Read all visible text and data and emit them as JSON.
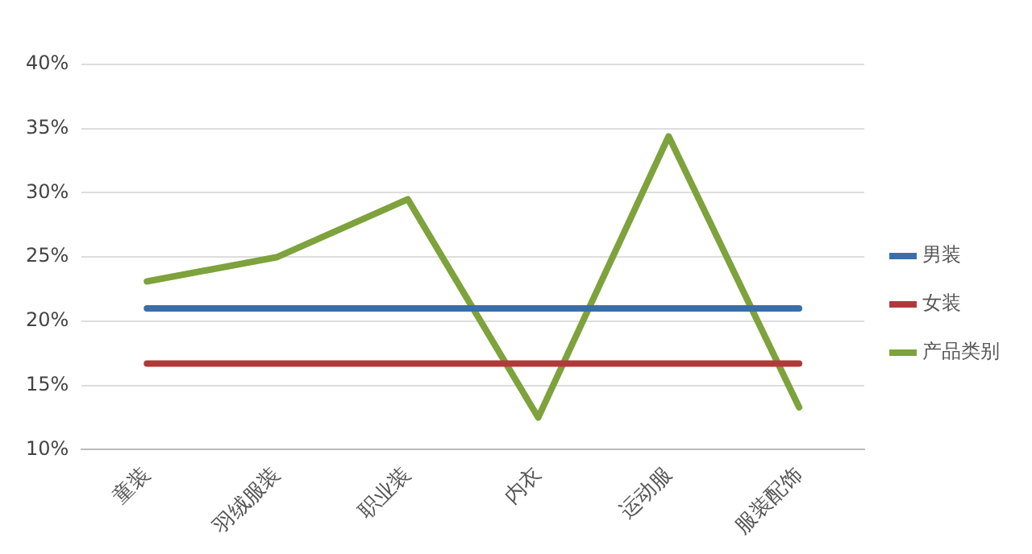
{
  "chart_data": {
    "type": "line",
    "categories": [
      "童装",
      "羽绒服装",
      "职业装",
      "内衣",
      "运动服",
      "服装配饰"
    ],
    "series": [
      {
        "name": "男装",
        "color": "#3a6ea8",
        "values": [
          21,
          21,
          21,
          21,
          21,
          21
        ]
      },
      {
        "name": "女装",
        "color": "#b03a3a",
        "values": [
          16.7,
          16.7,
          16.7,
          16.7,
          16.7,
          16.7
        ]
      },
      {
        "name": "产品类别",
        "color": "#7ea23c",
        "values": [
          23.1,
          25,
          29.5,
          12.5,
          34.4,
          13.3
        ]
      }
    ],
    "ylim": [
      10,
      40
    ],
    "yticks": [
      {
        "value": 10,
        "label": "10%"
      },
      {
        "value": 15,
        "label": "15%"
      },
      {
        "value": 20,
        "label": "20%"
      },
      {
        "value": 25,
        "label": "25%"
      },
      {
        "value": 30,
        "label": "30%"
      },
      {
        "value": 35,
        "label": "35%"
      },
      {
        "value": 40,
        "label": "40%"
      }
    ],
    "grid": "y",
    "legend": "right",
    "marker": "none",
    "line_style": "solid"
  }
}
